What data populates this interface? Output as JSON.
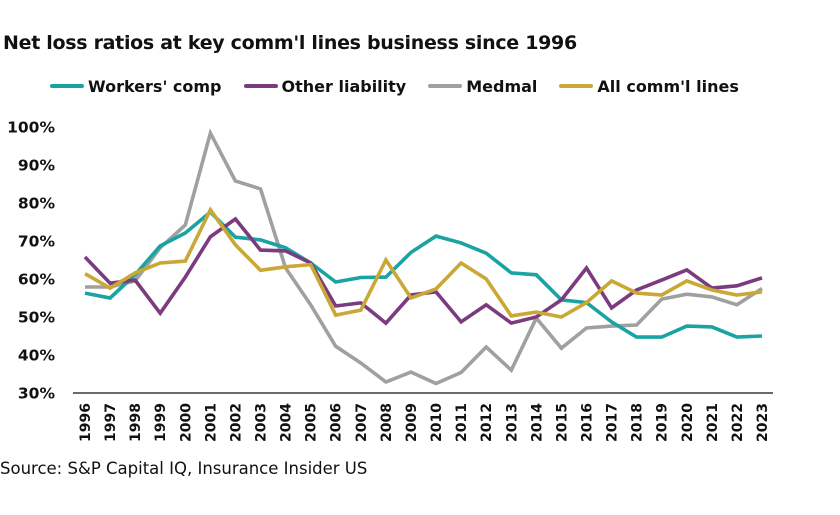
{
  "chart_data": {
    "type": "line",
    "title": "Net loss ratios at key comm'l lines business since 1996",
    "xlabel": "",
    "ylabel": "",
    "ylim": [
      30,
      100
    ],
    "y_ticks": [
      "100%",
      "90%",
      "80%",
      "70%",
      "60%",
      "50%",
      "40%",
      "30%"
    ],
    "y_tick_values": [
      100,
      90,
      80,
      70,
      60,
      50,
      40,
      30
    ],
    "grid": false,
    "legend_position": "top",
    "x": [
      "1996",
      "1997",
      "1998",
      "1999",
      "2000",
      "2001",
      "2002",
      "2003",
      "2004",
      "2005",
      "2006",
      "2007",
      "2008",
      "2009",
      "2010",
      "2011",
      "2012",
      "2013",
      "2014",
      "2015",
      "2016",
      "2017",
      "2018",
      "2019",
      "2020",
      "2021",
      "2022",
      "2023"
    ],
    "series": [
      {
        "name": "Workers' comp",
        "color": "#1aa3a3",
        "values": [
          56.3,
          55.0,
          61.1,
          68.7,
          72.1,
          77.6,
          71.0,
          70.3,
          68.2,
          64.2,
          59.2,
          60.4,
          60.5,
          67.0,
          71.3,
          69.5,
          66.8,
          61.6,
          61.1,
          54.5,
          53.8,
          48.7,
          44.7,
          44.7,
          47.6,
          47.4,
          44.7,
          45.0
        ]
      },
      {
        "name": "Other liability",
        "color": "#7b3b7f",
        "values": [
          65.8,
          58.9,
          59.7,
          51.0,
          60.5,
          71.1,
          75.8,
          67.6,
          67.4,
          64.2,
          52.9,
          53.7,
          48.4,
          55.8,
          56.6,
          48.7,
          53.2,
          48.4,
          50.0,
          54.5,
          62.9,
          52.4,
          57.1,
          59.7,
          62.4,
          57.6,
          58.2,
          60.3
        ]
      },
      {
        "name": "Medmal",
        "color": "#a0a0a0",
        "values": [
          57.9,
          57.9,
          59.5,
          68.2,
          74.2,
          98.4,
          85.8,
          83.7,
          62.9,
          53.2,
          42.3,
          37.9,
          32.9,
          35.5,
          32.5,
          35.4,
          42.1,
          36.0,
          49.7,
          41.8,
          47.1,
          47.6,
          47.9,
          54.7,
          56.0,
          55.3,
          53.2,
          57.5
        ]
      },
      {
        "name": "All comm'l lines",
        "color": "#c9a835",
        "values": [
          61.4,
          57.6,
          61.6,
          64.2,
          64.7,
          78.2,
          69.0,
          62.3,
          63.2,
          63.8,
          50.5,
          51.8,
          65.0,
          55.0,
          57.4,
          64.2,
          60.0,
          50.3,
          51.3,
          50.0,
          53.8,
          59.5,
          56.3,
          55.8,
          59.5,
          57.1,
          55.8,
          56.6
        ]
      }
    ]
  },
  "source": "Source: S&P Capital IQ, Insurance Insider US"
}
